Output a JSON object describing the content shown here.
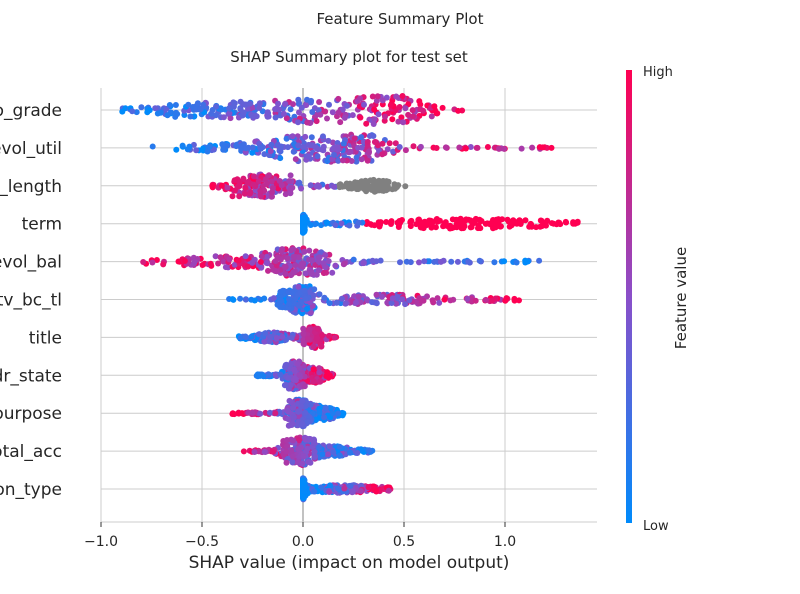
{
  "chart_data": {
    "type": "scatter",
    "title": "Feature Summary Plot",
    "subtitle": "SHAP Summary plot for test set",
    "xlabel": "SHAP value (impact on model output)",
    "xlim": [
      -1.0,
      1.45
    ],
    "xticks": [
      -1.0,
      -0.5,
      0.0,
      0.5,
      1.0
    ],
    "xtick_labels": [
      "−1.0",
      "−0.5",
      "0.0",
      "0.5",
      "1.0"
    ],
    "grid": true,
    "colorbar": {
      "label": "Feature value",
      "high_label": "High",
      "low_label": "Low",
      "low_color": "#008bfb",
      "high_color": "#ff0052",
      "mid_color": "#8a4fc9"
    },
    "missing_color": "#808080",
    "features": [
      {
        "label": "o_grade",
        "min": -0.9,
        "max": 0.82
      },
      {
        "label": "evol_util",
        "min": -0.75,
        "max": 1.24
      },
      {
        "label": "o_length",
        "min": -0.45,
        "max": 0.52
      },
      {
        "label": "term",
        "min": 0.0,
        "max": 1.36
      },
      {
        "label": "evol_bal",
        "min": -0.8,
        "max": 1.17
      },
      {
        "label": "tv_bc_tl",
        "min": -0.38,
        "max": 1.07
      },
      {
        "label": "title",
        "min": -0.32,
        "max": 0.17
      },
      {
        "label": "dr_state",
        "min": -0.23,
        "max": 0.15
      },
      {
        "label": "ourpose",
        "min": -0.36,
        "max": 0.2
      },
      {
        "label": "otal_acc",
        "min": -0.32,
        "max": 0.35
      },
      {
        "label": "on_type",
        "min": 0.0,
        "max": 0.44
      }
    ]
  }
}
